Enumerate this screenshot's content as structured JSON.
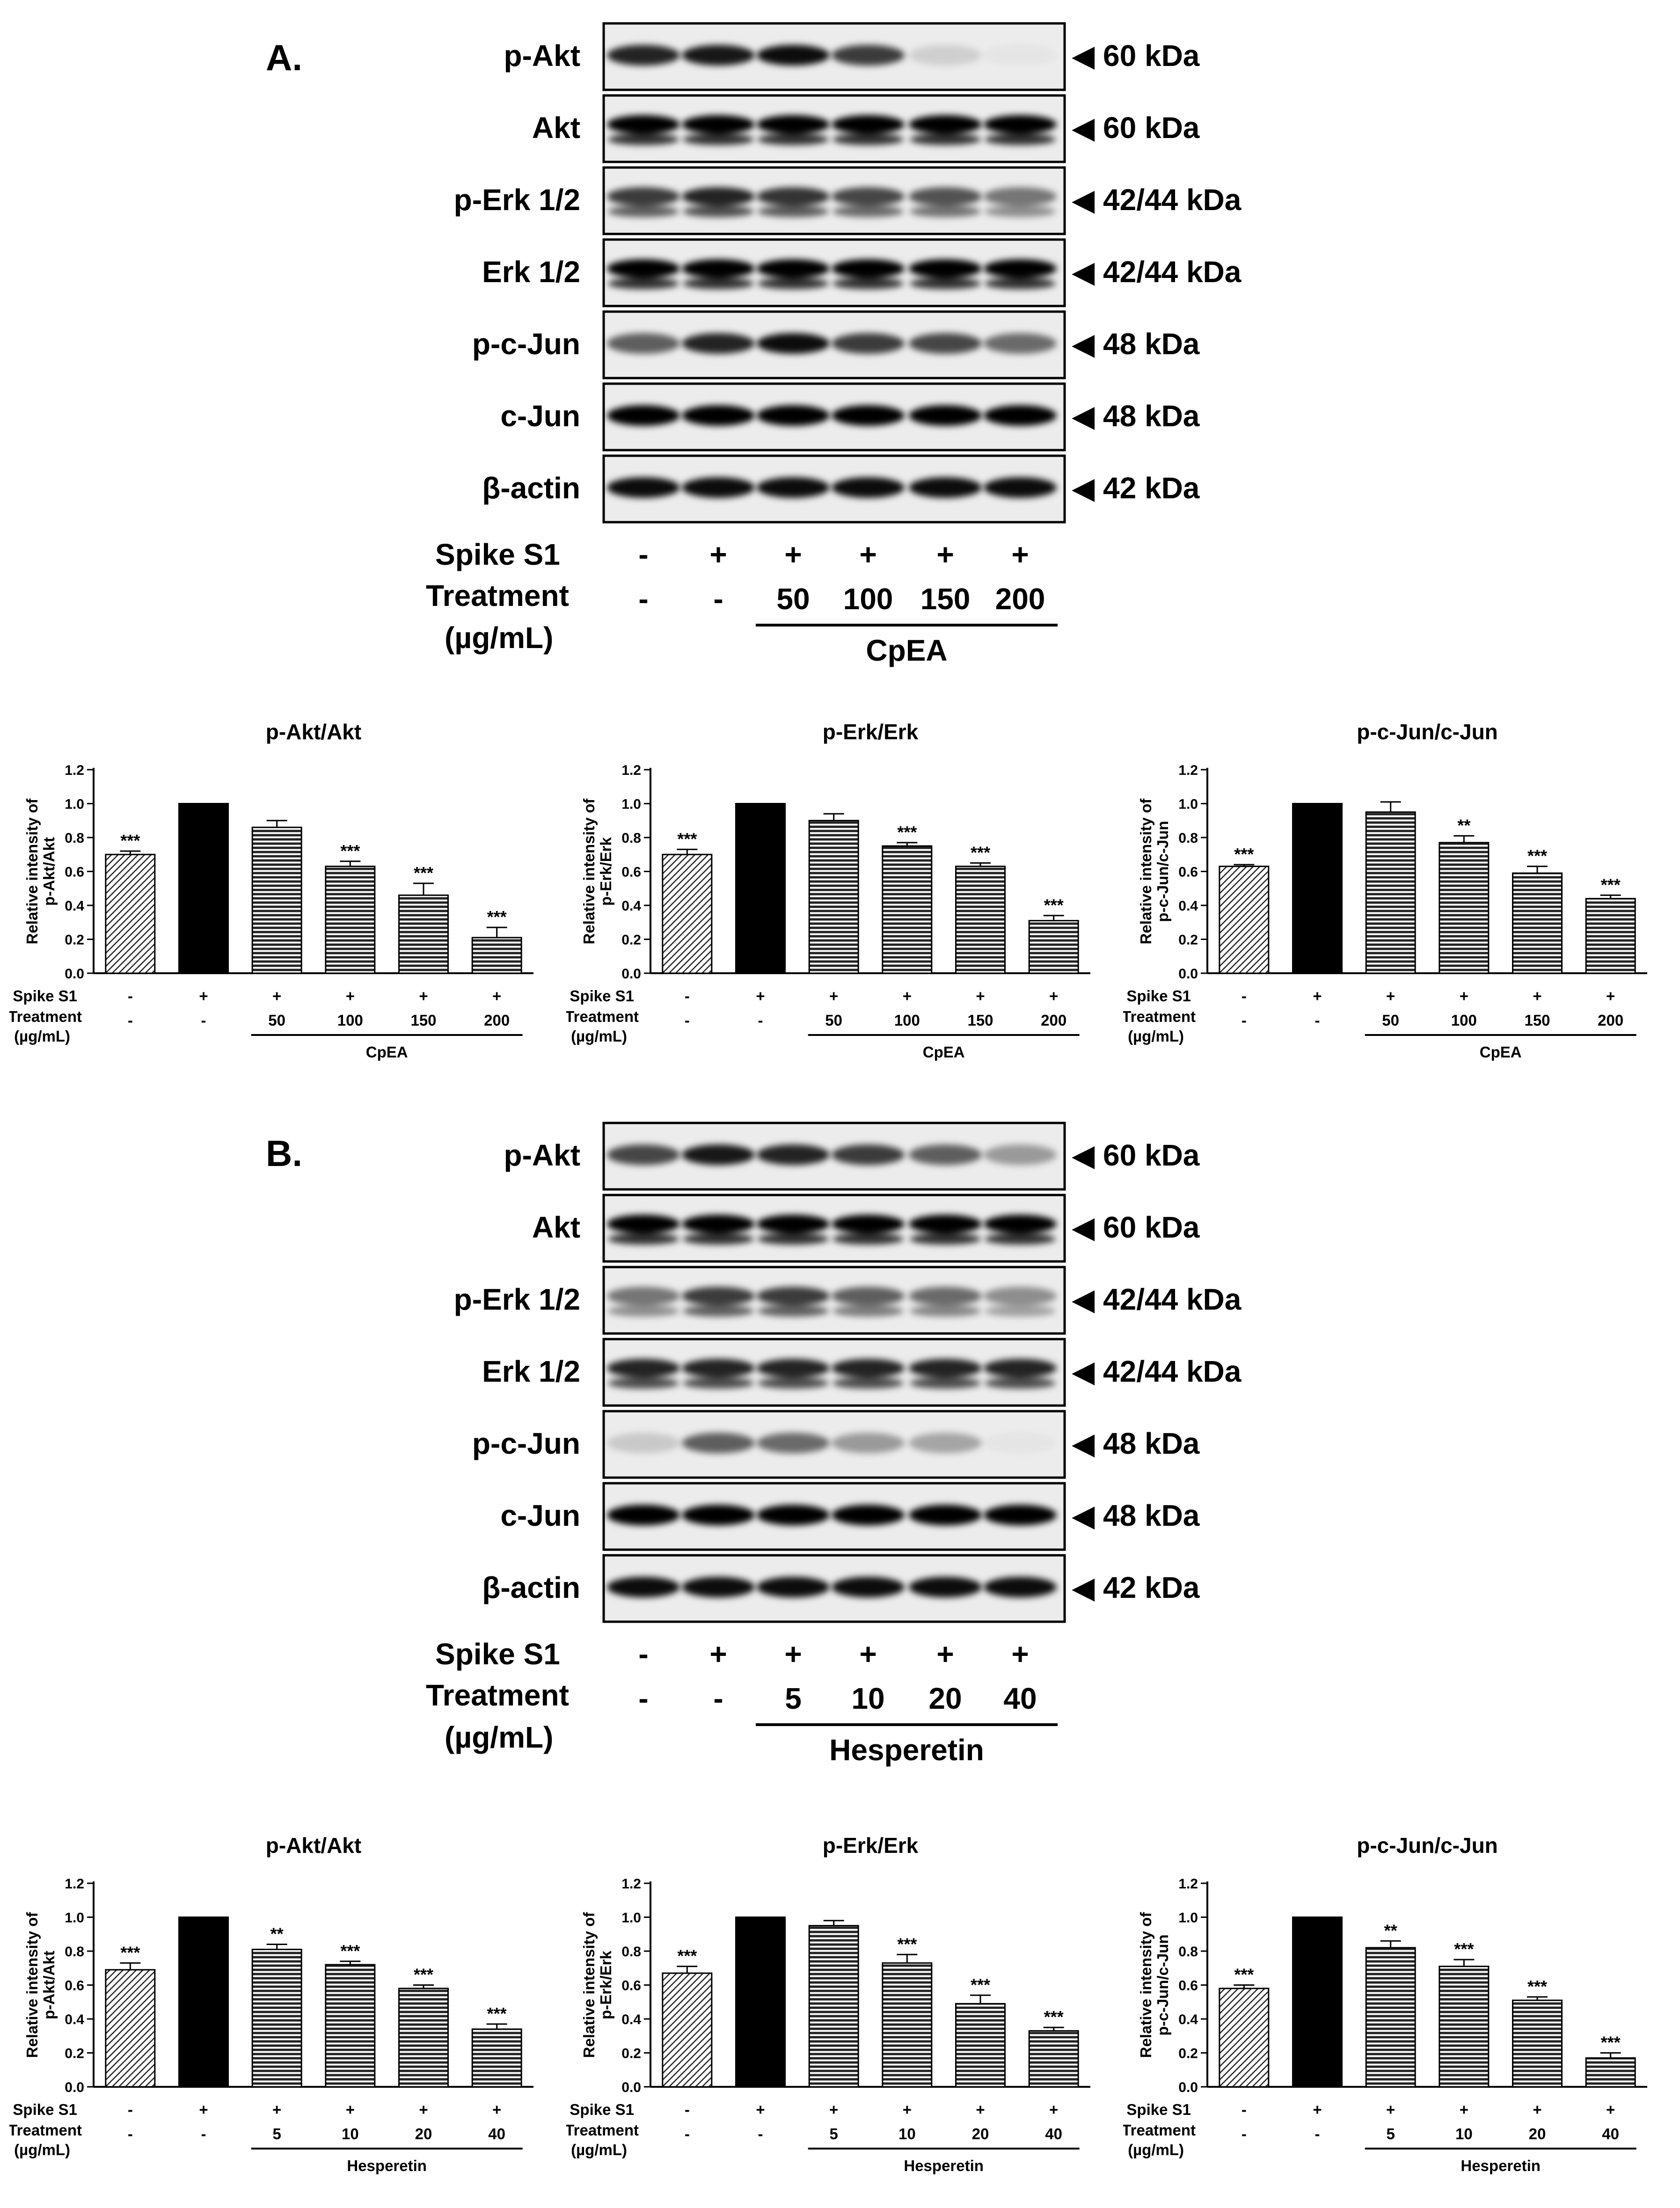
{
  "panels": [
    {
      "letter": "A.",
      "blots": [
        {
          "protein": "p-Akt",
          "kda": "◀ 60 kDa",
          "bands": [
            0.85,
            0.9,
            0.95,
            0.75,
            0.12,
            0.02
          ],
          "double": false
        },
        {
          "protein": "Akt",
          "kda": "◀ 60 kDa",
          "bands": [
            1,
            1,
            1,
            1,
            1,
            1
          ],
          "double": true
        },
        {
          "protein": "p-Erk 1/2",
          "kda": "◀ 42/44 kDa",
          "bands": [
            0.75,
            0.85,
            0.78,
            0.7,
            0.65,
            0.5
          ],
          "double": true
        },
        {
          "protein": "Erk 1/2",
          "kda": "◀ 42/44 kDa",
          "bands": [
            1,
            1,
            1,
            1,
            1,
            1
          ],
          "double": true
        },
        {
          "protein": "p-c-Jun",
          "kda": "◀ 48 kDa",
          "bands": [
            0.6,
            0.85,
            0.95,
            0.75,
            0.7,
            0.55
          ],
          "double": false
        },
        {
          "protein": "c-Jun",
          "kda": "◀ 48 kDa",
          "bands": [
            1,
            1,
            1,
            1,
            1,
            1
          ],
          "double": false
        },
        {
          "protein": "β-actin",
          "kda": "◀ 42 kDa",
          "bands": [
            0.95,
            0.95,
            0.95,
            0.95,
            0.95,
            0.95
          ],
          "double": false
        }
      ],
      "spike_label": "Spike S1",
      "spike": [
        "-",
        "+",
        "+",
        "+",
        "+",
        "+"
      ],
      "treatment_label": "Treatment",
      "unit_label": "(µg/mL)",
      "treatment": [
        "-",
        "-",
        "50",
        "100",
        "150",
        "200"
      ],
      "treatment_name": "CpEA"
    },
    {
      "letter": "B.",
      "blots": [
        {
          "protein": "p-Akt",
          "kda": "◀ 60 kDa",
          "bands": [
            0.7,
            0.9,
            0.85,
            0.75,
            0.6,
            0.35
          ],
          "double": false
        },
        {
          "protein": "Akt",
          "kda": "◀ 60 kDa",
          "bands": [
            1,
            1,
            1,
            1,
            1,
            1
          ],
          "double": true
        },
        {
          "protein": "p-Erk 1/2",
          "kda": "◀ 42/44 kDa",
          "bands": [
            0.5,
            0.75,
            0.75,
            0.6,
            0.55,
            0.4
          ],
          "double": true
        },
        {
          "protein": "Erk 1/2",
          "kda": "◀ 42/44 kDa",
          "bands": [
            0.85,
            0.85,
            0.85,
            0.85,
            0.85,
            0.85
          ],
          "double": true
        },
        {
          "protein": "p-c-Jun",
          "kda": "◀ 48 kDa",
          "bands": [
            0.15,
            0.6,
            0.55,
            0.35,
            0.3,
            0.02
          ],
          "double": false
        },
        {
          "protein": "c-Jun",
          "kda": "◀ 48 kDa",
          "bands": [
            1,
            1,
            1,
            1,
            1,
            1
          ],
          "double": false
        },
        {
          "protein": "β-actin",
          "kda": "◀ 42 kDa",
          "bands": [
            0.95,
            0.95,
            0.95,
            0.95,
            0.95,
            0.95
          ],
          "double": false
        }
      ],
      "spike_label": "Spike S1",
      "spike": [
        "-",
        "+",
        "+",
        "+",
        "+",
        "+"
      ],
      "treatment_label": "Treatment",
      "unit_label": "(µg/mL)",
      "treatment": [
        "-",
        "-",
        "5",
        "10",
        "20",
        "40"
      ],
      "treatment_name": "Hesperetin"
    }
  ],
  "chart_common": {
    "spike_label": "Spike S1",
    "treatment_label": "Treatment",
    "unit_label": "(µg/mL)",
    "spike": [
      "-",
      "+",
      "+",
      "+",
      "+",
      "+"
    ],
    "yticks": [
      "0.0",
      "0.2",
      "0.4",
      "0.6",
      "0.8",
      "1.0",
      "1.2"
    ]
  },
  "chart_data": [
    {
      "type": "bar",
      "title": "p-Akt/Akt",
      "ylabel_line1": "Relative intensity of",
      "ylabel_line2": "p-Akt/Akt",
      "ylim": [
        0,
        1.2
      ],
      "categories": [
        "-",
        "-",
        "50",
        "100",
        "150",
        "200"
      ],
      "treatment_name": "CpEA",
      "values": [
        0.7,
        1.0,
        0.86,
        0.63,
        0.46,
        0.21
      ],
      "errors": [
        0.02,
        0,
        0.04,
        0.03,
        0.07,
        0.06
      ],
      "significance": [
        "***",
        "",
        "",
        "***",
        "***",
        "***"
      ]
    },
    {
      "type": "bar",
      "title": "p-Erk/Erk",
      "ylabel_line1": "Relative intensity of",
      "ylabel_line2": "p-Erk/Erk",
      "ylim": [
        0,
        1.2
      ],
      "categories": [
        "-",
        "-",
        "50",
        "100",
        "150",
        "200"
      ],
      "treatment_name": "CpEA",
      "values": [
        0.7,
        1.0,
        0.9,
        0.75,
        0.63,
        0.31
      ],
      "errors": [
        0.03,
        0,
        0.04,
        0.02,
        0.02,
        0.03
      ],
      "significance": [
        "***",
        "",
        "",
        "***",
        "***",
        "***"
      ]
    },
    {
      "type": "bar",
      "title": "p-c-Jun/c-Jun",
      "ylabel_line1": "Relative intensity of",
      "ylabel_line2": "p-c-Jun/c-Jun",
      "ylim": [
        0,
        1.2
      ],
      "categories": [
        "-",
        "-",
        "50",
        "100",
        "150",
        "200"
      ],
      "treatment_name": "CpEA",
      "values": [
        0.63,
        1.0,
        0.95,
        0.77,
        0.59,
        0.44
      ],
      "errors": [
        0.01,
        0,
        0.06,
        0.04,
        0.04,
        0.02
      ],
      "significance": [
        "***",
        "",
        "",
        "**",
        "***",
        "***"
      ]
    },
    {
      "type": "bar",
      "title": "p-Akt/Akt",
      "ylabel_line1": "Relative intensity of",
      "ylabel_line2": "p-Akt/Akt",
      "ylim": [
        0,
        1.2
      ],
      "categories": [
        "-",
        "-",
        "5",
        "10",
        "20",
        "40"
      ],
      "treatment_name": "Hesperetin",
      "values": [
        0.69,
        1.0,
        0.81,
        0.72,
        0.58,
        0.34
      ],
      "errors": [
        0.04,
        0,
        0.03,
        0.02,
        0.02,
        0.03
      ],
      "significance": [
        "***",
        "",
        "**",
        "***",
        "***",
        "***"
      ]
    },
    {
      "type": "bar",
      "title": "p-Erk/Erk",
      "ylabel_line1": "Relative intensity of",
      "ylabel_line2": "p-Erk/Erk",
      "ylim": [
        0,
        1.2
      ],
      "categories": [
        "-",
        "-",
        "5",
        "10",
        "20",
        "40"
      ],
      "treatment_name": "Hesperetin",
      "values": [
        0.67,
        1.0,
        0.95,
        0.73,
        0.49,
        0.33
      ],
      "errors": [
        0.04,
        0,
        0.03,
        0.05,
        0.05,
        0.02
      ],
      "significance": [
        "***",
        "",
        "",
        "***",
        "***",
        "***"
      ]
    },
    {
      "type": "bar",
      "title": "p-c-Jun/c-Jun",
      "ylabel_line1": "Relative intensity of",
      "ylabel_line2": "p-c-Jun/c-Jun",
      "ylim": [
        0,
        1.2
      ],
      "categories": [
        "-",
        "-",
        "5",
        "10",
        "20",
        "40"
      ],
      "treatment_name": "Hesperetin",
      "values": [
        0.58,
        1.0,
        0.82,
        0.71,
        0.51,
        0.17
      ],
      "errors": [
        0.02,
        0,
        0.04,
        0.04,
        0.02,
        0.03
      ],
      "significance": [
        "***",
        "",
        "**",
        "***",
        "***",
        "***"
      ]
    }
  ]
}
